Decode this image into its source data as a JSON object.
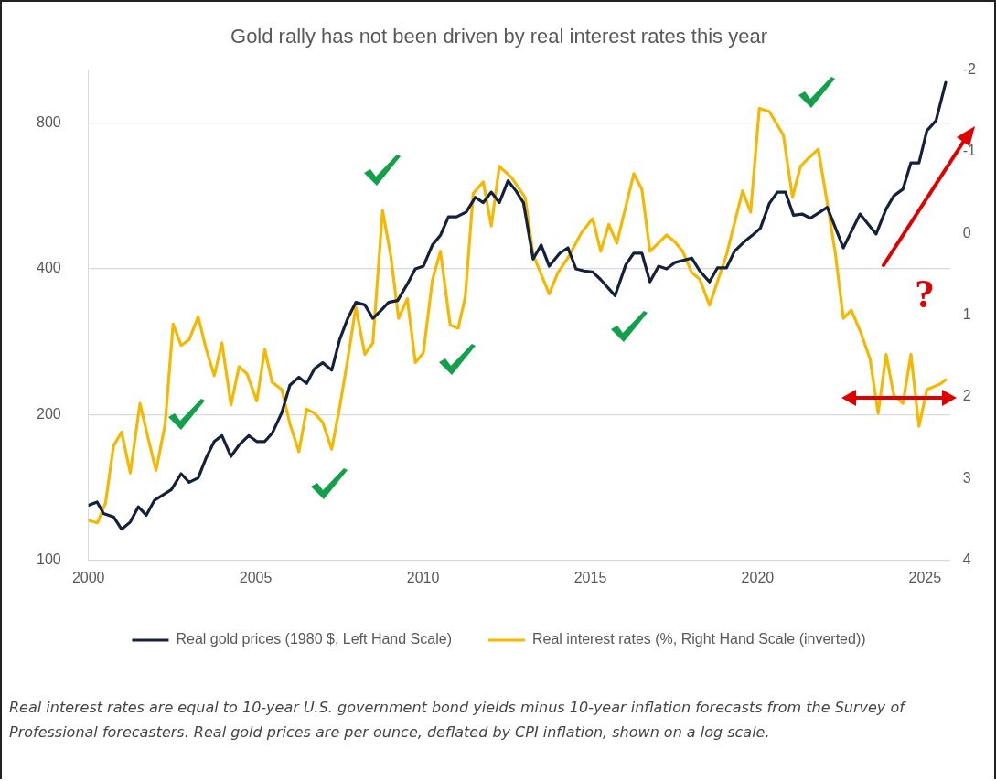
{
  "chart_data": {
    "type": "line",
    "title": "Gold rally has not been driven by real interest rates this year",
    "xlim": [
      2000,
      2025.75
    ],
    "xticks": [
      2000,
      2005,
      2010,
      2015,
      2020,
      2025
    ],
    "ylim": [
      100,
      1030
    ],
    "yticks": [
      100,
      200,
      400,
      800
    ],
    "log": "y",
    "y2lim": [
      4,
      -2
    ],
    "y2ticks": [
      -2,
      -1,
      0,
      1,
      2,
      3,
      4
    ],
    "grid": "y",
    "legend": "bottom",
    "marker": "none",
    "line_style": "solid",
    "series": [
      {
        "name": "Real gold prices (1980 $, Left Hand Scale)",
        "color": "#14213d",
        "x": [
          2000.0,
          2000.26,
          2000.45,
          2000.75,
          2000.99,
          2001.25,
          2001.49,
          2001.73,
          2001.97,
          2002.48,
          2002.77,
          2003.01,
          2003.28,
          2003.52,
          2003.76,
          2003.99,
          2004.26,
          2004.5,
          2004.79,
          2005.03,
          2005.27,
          2005.49,
          2005.78,
          2006.02,
          2006.29,
          2006.52,
          2006.76,
          2007.0,
          2007.27,
          2007.51,
          2007.75,
          2007.99,
          2008.26,
          2008.5,
          2008.74,
          2008.97,
          2009.24,
          2009.53,
          2009.77,
          2010.01,
          2010.28,
          2010.52,
          2010.76,
          2011.0,
          2011.29,
          2011.56,
          2011.8,
          2012.04,
          2012.28,
          2012.54,
          2012.78,
          2013.0,
          2013.29,
          2013.53,
          2013.77,
          2014.09,
          2014.33,
          2014.57,
          2014.81,
          2015.07,
          2015.31,
          2015.74,
          2016.06,
          2016.3,
          2016.54,
          2016.78,
          2017.04,
          2017.28,
          2017.52,
          2018.03,
          2018.27,
          2018.56,
          2018.8,
          2019.07,
          2019.31,
          2019.6,
          2019.84,
          2020.08,
          2020.35,
          2020.59,
          2020.83,
          2021.07,
          2021.33,
          2021.57,
          2021.81,
          2022.08,
          2022.56,
          2023.06,
          2023.54,
          2023.84,
          2024.07,
          2024.34,
          2024.58,
          2024.82,
          2025.06,
          2025.33,
          2025.62
        ],
        "values": [
          130,
          132,
          125,
          123,
          116,
          120,
          129,
          124,
          133,
          140,
          151,
          145,
          148,
          163,
          176,
          181,
          164,
          173,
          181,
          176,
          176,
          183,
          202,
          230,
          239,
          232,
          249,
          256,
          247,
          286,
          316,
          341,
          337,
          316,
          328,
          341,
          344,
          372,
          400,
          405,
          448,
          469,
          512,
          512,
          524,
          562,
          548,
          576,
          548,
          608,
          579,
          548,
          419,
          448,
          405,
          431,
          442,
          400,
          396,
          394,
          380,
          352,
          408,
          431,
          431,
          376,
          405,
          400,
          412,
          421,
          396,
          376,
          402,
          402,
          435,
          455,
          469,
          485,
          546,
          576,
          576,
          516,
          519,
          509,
          521,
          536,
          442,
          519,
          472,
          532,
          566,
          584,
          662,
          662,
          772,
          809,
          970
        ]
      },
      {
        "name": "Real interest rates (%, Right Hand Scale (inverted))",
        "color": "#f5b800",
        "axis": "y2",
        "x": [
          2000.0,
          2000.27,
          2000.51,
          2000.75,
          2000.99,
          2001.25,
          2001.54,
          2001.78,
          2002.02,
          2002.29,
          2002.53,
          2002.77,
          2003.01,
          2003.28,
          2003.52,
          2003.76,
          2003.99,
          2004.26,
          2004.5,
          2004.74,
          2005.03,
          2005.27,
          2005.49,
          2005.78,
          2006.02,
          2006.29,
          2006.52,
          2006.76,
          2007.0,
          2007.27,
          2007.51,
          2007.75,
          2007.99,
          2008.26,
          2008.5,
          2008.79,
          2009.03,
          2009.27,
          2009.53,
          2009.77,
          2010.01,
          2010.28,
          2010.52,
          2010.81,
          2011.05,
          2011.26,
          2011.5,
          2011.8,
          2012.04,
          2012.28,
          2012.65,
          2013.05,
          2013.29,
          2013.77,
          2014.03,
          2014.33,
          2014.75,
          2015.07,
          2015.31,
          2015.55,
          2015.79,
          2016.3,
          2016.54,
          2016.78,
          2017.28,
          2017.52,
          2017.76,
          2018.03,
          2018.27,
          2018.56,
          2019.07,
          2019.55,
          2019.79,
          2020.05,
          2020.35,
          2020.77,
          2021.04,
          2021.28,
          2021.52,
          2021.81,
          2022.08,
          2022.32,
          2022.56,
          2022.8,
          2023.09,
          2023.36,
          2023.6,
          2023.84,
          2024.07,
          2024.34,
          2024.58,
          2024.82,
          2025.06,
          2025.46,
          2025.62
        ],
        "values": [
          3.51,
          3.54,
          3.3,
          2.6,
          2.43,
          2.93,
          2.08,
          2.5,
          2.9,
          2.34,
          1.11,
          1.37,
          1.3,
          1.02,
          1.42,
          1.74,
          1.34,
          2.1,
          1.63,
          1.72,
          2.05,
          1.42,
          1.82,
          1.91,
          2.33,
          2.67,
          2.15,
          2.2,
          2.31,
          2.64,
          2.12,
          1.54,
          0.9,
          1.48,
          1.34,
          -0.28,
          0.26,
          1.04,
          0.8,
          1.58,
          1.46,
          0.57,
          0.22,
          1.12,
          1.16,
          0.78,
          -0.49,
          -0.63,
          -0.09,
          -0.82,
          -0.68,
          -0.44,
          0.26,
          0.74,
          0.48,
          0.3,
          -0.02,
          -0.18,
          0.22,
          -0.11,
          0.12,
          -0.73,
          -0.54,
          0.22,
          0.02,
          0.1,
          0.22,
          0.48,
          0.56,
          0.88,
          0.26,
          -0.52,
          -0.26,
          -1.53,
          -1.49,
          -1.2,
          -0.44,
          -0.82,
          -0.92,
          -1.03,
          -0.37,
          0.24,
          1.04,
          0.94,
          1.22,
          1.54,
          2.2,
          1.48,
          1.98,
          2.08,
          1.48,
          2.36,
          1.91,
          1.84,
          1.79
        ]
      }
    ],
    "annotations": [
      "?",
      "Real interest rates are equal to 10-year U.S. government bond yields minus 10-year inflation forecasts from the Survey of Professional forecasters. Real gold prices are per ounce, deflated by CPI inflation, shown on a log scale."
    ]
  }
}
